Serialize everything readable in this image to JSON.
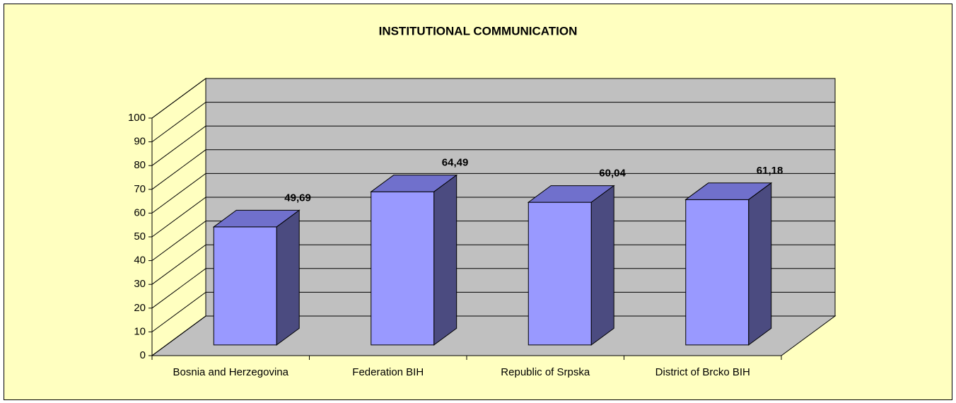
{
  "chart_data": {
    "type": "bar3d",
    "title": "INSTITUTIONAL COMMUNICATION",
    "categories": [
      "Bosnia and Herzegovina",
      "Federation BIH",
      "Republic of Srpska",
      "District of Brcko BIH"
    ],
    "values": [
      49.69,
      64.49,
      60.04,
      61.18
    ],
    "value_labels": [
      "49,69",
      "64,49",
      "60,04",
      "61,18"
    ],
    "color": "#9999ff",
    "ylim": [
      0,
      100
    ],
    "yticks": [
      0,
      10,
      20,
      30,
      40,
      50,
      60,
      70,
      80,
      90,
      100
    ],
    "grid": true
  }
}
